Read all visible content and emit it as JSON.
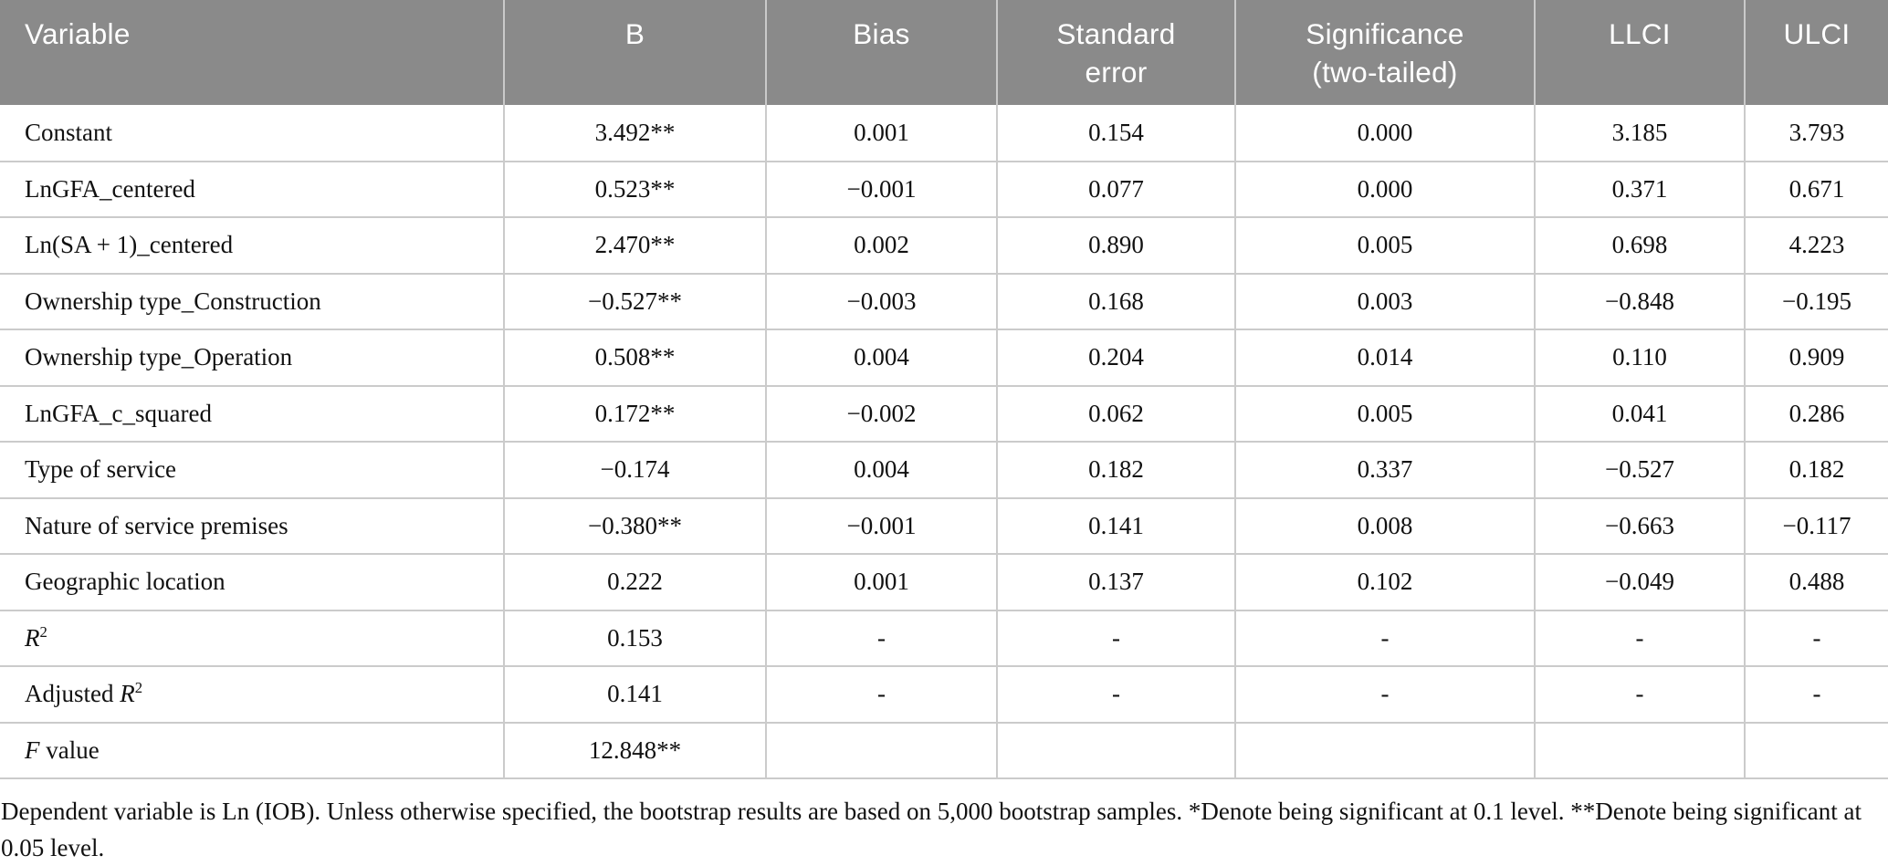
{
  "colors": {
    "header_bg": "#8a8a8a",
    "header_text": "#ffffff",
    "grid_line": "#cbcbcb",
    "body_text": "#111111"
  },
  "table": {
    "columns": [
      {
        "label": "Variable"
      },
      {
        "label": "B"
      },
      {
        "label": "Bias"
      },
      {
        "label": "Standard\nerror"
      },
      {
        "label": "Significance\n(two-tailed)"
      },
      {
        "label": "LLCI"
      },
      {
        "label": "ULCI"
      }
    ],
    "rows": [
      {
        "variable": [
          {
            "text": "Constant"
          }
        ],
        "values": [
          "3.492**",
          "0.001",
          "0.154",
          "0.000",
          "3.185",
          "3.793"
        ]
      },
      {
        "variable": [
          {
            "text": "LnGFA_centered"
          }
        ],
        "values": [
          "0.523**",
          "−0.001",
          "0.077",
          "0.000",
          "0.371",
          "0.671"
        ]
      },
      {
        "variable": [
          {
            "text": "Ln(SA + 1)_centered"
          }
        ],
        "values": [
          "2.470**",
          "0.002",
          "0.890",
          "0.005",
          "0.698",
          "4.223"
        ]
      },
      {
        "variable": [
          {
            "text": "Ownership type_Construction"
          }
        ],
        "values": [
          "−0.527**",
          "−0.003",
          "0.168",
          "0.003",
          "−0.848",
          "−0.195"
        ]
      },
      {
        "variable": [
          {
            "text": "Ownership type_Operation"
          }
        ],
        "values": [
          "0.508**",
          "0.004",
          "0.204",
          "0.014",
          "0.110",
          "0.909"
        ]
      },
      {
        "variable": [
          {
            "text": "LnGFA_c_squared"
          }
        ],
        "values": [
          "0.172**",
          "−0.002",
          "0.062",
          "0.005",
          "0.041",
          "0.286"
        ]
      },
      {
        "variable": [
          {
            "text": "Type of service"
          }
        ],
        "values": [
          "−0.174",
          "0.004",
          "0.182",
          "0.337",
          "−0.527",
          "0.182"
        ]
      },
      {
        "variable": [
          {
            "text": "Nature of service premises"
          }
        ],
        "values": [
          "−0.380**",
          "−0.001",
          "0.141",
          "0.008",
          "−0.663",
          "−0.117"
        ]
      },
      {
        "variable": [
          {
            "text": "Geographic location"
          }
        ],
        "values": [
          "0.222",
          "0.001",
          "0.137",
          "0.102",
          "−0.049",
          "0.488"
        ]
      },
      {
        "variable": [
          {
            "text": "R",
            "style": "italic"
          },
          {
            "text": "2",
            "style": "sup"
          }
        ],
        "values": [
          "0.153",
          "-",
          "-",
          "-",
          "-",
          "-"
        ]
      },
      {
        "variable": [
          {
            "text": "Adjusted "
          },
          {
            "text": "R",
            "style": "italic"
          },
          {
            "text": "2",
            "style": "sup"
          }
        ],
        "values": [
          "0.141",
          "-",
          "-",
          "-",
          "-",
          "-"
        ]
      },
      {
        "variable": [
          {
            "text": "F",
            "style": "italic"
          },
          {
            "text": " value"
          }
        ],
        "values": [
          "12.848**",
          "",
          "",
          "",
          "",
          ""
        ]
      }
    ]
  },
  "footnote": "Dependent variable is Ln (IOB). Unless otherwise specified, the bootstrap results are based on 5,000 bootstrap samples. *Denote being significant at 0.1 level. **Denote being significant at 0.05 level."
}
